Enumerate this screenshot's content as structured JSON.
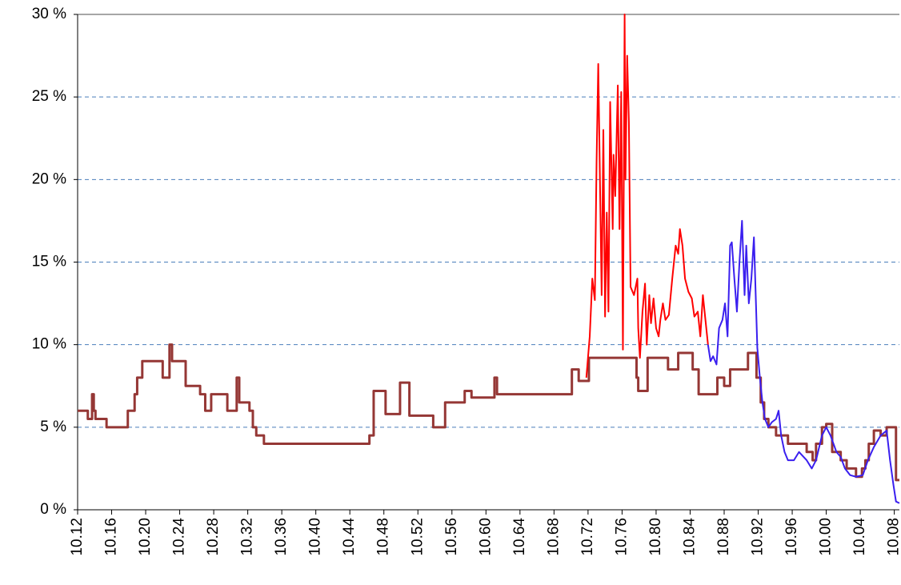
{
  "chart_data": {
    "type": "line",
    "xlim": [
      0,
      96.6
    ],
    "ylim": [
      0,
      30
    ],
    "yticks": [
      {
        "value": 0,
        "label": "0 %"
      },
      {
        "value": 5,
        "label": "5 %"
      },
      {
        "value": 10,
        "label": "10 %"
      },
      {
        "value": 15,
        "label": "15 %"
      },
      {
        "value": 20,
        "label": "20 %"
      },
      {
        "value": 25,
        "label": "25 %"
      },
      {
        "value": 30,
        "label": "30 %"
      }
    ],
    "xticks": [
      {
        "value": 0,
        "label": "10.12"
      },
      {
        "value": 4,
        "label": "10.16"
      },
      {
        "value": 8,
        "label": "10.20"
      },
      {
        "value": 12,
        "label": "10.24"
      },
      {
        "value": 16,
        "label": "10.28"
      },
      {
        "value": 20,
        "label": "10.32"
      },
      {
        "value": 24,
        "label": "10.36"
      },
      {
        "value": 28,
        "label": "10.40"
      },
      {
        "value": 32,
        "label": "10.44"
      },
      {
        "value": 36,
        "label": "10.48"
      },
      {
        "value": 40,
        "label": "10.52"
      },
      {
        "value": 44,
        "label": "10.56"
      },
      {
        "value": 48,
        "label": "10.60"
      },
      {
        "value": 52,
        "label": "10.64"
      },
      {
        "value": 56,
        "label": "10.68"
      },
      {
        "value": 60,
        "label": "10.72"
      },
      {
        "value": 64,
        "label": "10.76"
      },
      {
        "value": 68,
        "label": "10.80"
      },
      {
        "value": 72,
        "label": "10.84"
      },
      {
        "value": 76,
        "label": "10.88"
      },
      {
        "value": 80,
        "label": "10.92"
      },
      {
        "value": 84,
        "label": "10.96"
      },
      {
        "value": 88,
        "label": "10.00"
      },
      {
        "value": 92,
        "label": "10.04"
      },
      {
        "value": 96,
        "label": "10.08"
      }
    ],
    "grid": true,
    "series": [
      {
        "color": "#953735",
        "step": true,
        "x": [
          0,
          1.2,
          1.7,
          1.9,
          2.1,
          3.4,
          5.9,
          6.7,
          7.0,
          7.6,
          10.0,
          10.8,
          11.1,
          12.7,
          14.4,
          15.0,
          15.7,
          17.6,
          18.7,
          19.0,
          20.2,
          20.6,
          21.0,
          21.9,
          34.3,
          34.8,
          36.2,
          37.9,
          39.0,
          41.8,
          43.2,
          45.5,
          46.3,
          49.0,
          49.3,
          58.1,
          58.9,
          60.1,
          65.7,
          65.9,
          67.0,
          69.4,
          70.6,
          72.3,
          73.0,
          75.2,
          76.0,
          76.7,
          78.8,
          79.8,
          80.3,
          80.7,
          81.2,
          82.1,
          83.5,
          85.7,
          86.4,
          86.8,
          87.5,
          88.0,
          88.7,
          89.7,
          90.4,
          91.5,
          92.2,
          92.6,
          93.0,
          93.6,
          94.4,
          95.1,
          96.2,
          96.6
        ],
        "values": [
          6,
          5.5,
          7,
          6,
          5.5,
          5,
          6,
          7,
          8,
          9,
          8,
          10,
          9,
          7.5,
          7,
          6,
          7,
          6,
          8,
          6.5,
          6,
          5,
          4.5,
          4,
          4.5,
          7.2,
          5.8,
          7.7,
          5.7,
          5,
          6.5,
          7.2,
          6.8,
          8,
          7,
          8.5,
          7.8,
          9.2,
          8,
          7.2,
          9.2,
          8.5,
          9.5,
          8.5,
          7,
          8,
          7.5,
          8.5,
          9.5,
          8,
          6.5,
          5.5,
          5,
          4.5,
          4,
          3.5,
          3,
          4,
          5,
          5.2,
          3.5,
          3,
          2.5,
          2,
          2.5,
          3,
          4,
          4.8,
          4.5,
          5,
          1.8,
          1.8
        ]
      },
      {
        "color": "#ff0000",
        "x": [
          59.8,
          60.2,
          60.5,
          60.8,
          61.0,
          61.2,
          61.4,
          61.6,
          61.8,
          62.0,
          62.2,
          62.4,
          62.6,
          62.9,
          63.0,
          63.2,
          63.5,
          63.7,
          63.9,
          64.1,
          64.3,
          64.4,
          64.6,
          64.8,
          65.0,
          65.4,
          65.8,
          65.9,
          66.1,
          66.4,
          66.7,
          66.9,
          67.2,
          67.4,
          67.7,
          68.0,
          68.3,
          68.5,
          68.8,
          69.1,
          69.5,
          69.9,
          70.3,
          70.6,
          70.8,
          71.1,
          71.4,
          71.8,
          72.2,
          72.5,
          72.9,
          73.2,
          73.5,
          73.8,
          74.1
        ],
        "values": [
          8,
          10.5,
          14,
          12.7,
          21,
          27,
          20,
          13,
          23,
          11.7,
          18,
          12,
          24.7,
          17,
          21.5,
          19,
          25.7,
          17,
          25.3,
          9.7,
          30,
          20,
          27.5,
          23.5,
          13.5,
          13,
          14,
          11,
          9.2,
          12,
          13.7,
          10,
          13,
          11.3,
          12.8,
          11,
          10.5,
          11.5,
          12.5,
          11.5,
          11.8,
          14,
          16,
          15.5,
          17,
          16,
          14,
          13.2,
          12.8,
          11.7,
          12,
          10.5,
          13,
          11.5,
          10
        ]
      },
      {
        "color": "#3a1fef",
        "x": [
          74.1,
          74.4,
          74.7,
          75.1,
          75.4,
          75.8,
          76.1,
          76.4,
          76.7,
          76.9,
          77.2,
          77.5,
          77.8,
          78.1,
          78.4,
          78.6,
          78.9,
          79.2,
          79.5,
          79.9,
          80.2,
          80.5,
          80.8,
          81.2,
          81.6,
          82.1,
          82.4,
          82.7,
          83.1,
          83.5,
          84.2,
          84.8,
          85.7,
          86.3,
          86.8,
          87.5,
          88.0,
          88.5,
          89.2,
          89.7,
          90.2,
          90.8,
          91.5,
          92.3,
          92.9,
          93.6,
          94.4,
          95.1,
          95.5,
          95.9,
          96.2,
          96.6
        ],
        "values": [
          10,
          9,
          9.3,
          8.8,
          11,
          11.5,
          12.5,
          10.5,
          16,
          16.2,
          14,
          12,
          15,
          17.5,
          13,
          16,
          12.5,
          14,
          16.5,
          9.8,
          8,
          6.5,
          5.5,
          5,
          5.3,
          5.5,
          6,
          4.5,
          3.5,
          3,
          3,
          3.5,
          3,
          2.5,
          3,
          4.5,
          5,
          4.5,
          3.5,
          3.2,
          2.5,
          2.1,
          2,
          2.1,
          3,
          3.8,
          4.5,
          4.8,
          3,
          1.5,
          0.5,
          0.4
        ]
      }
    ]
  }
}
